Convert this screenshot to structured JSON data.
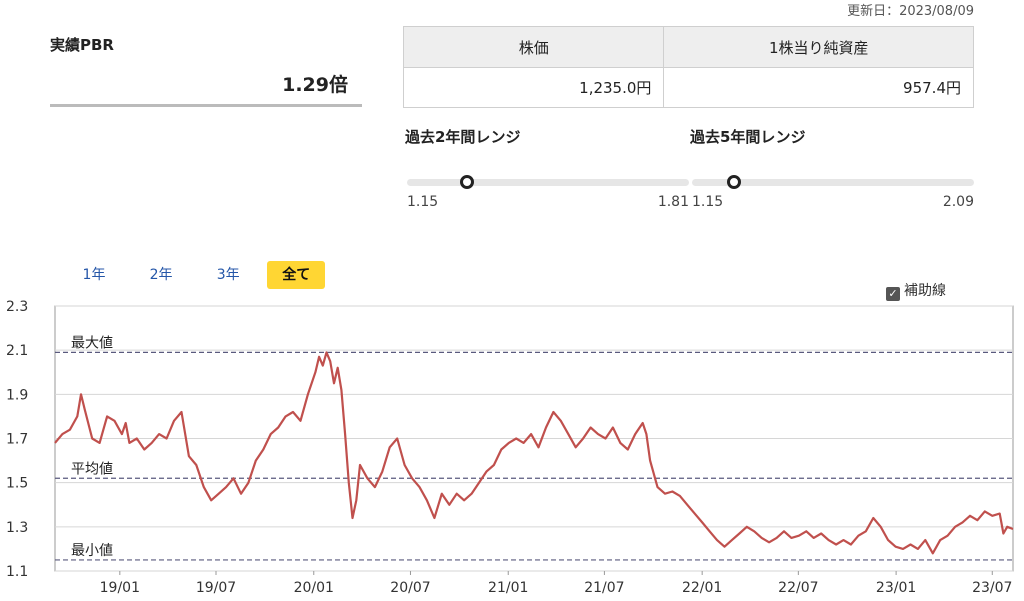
{
  "updated": "更新日：2023/08/09",
  "pbr": {
    "label": "実績PBR",
    "value": "1.29倍"
  },
  "table": {
    "headers": [
      "株価",
      "1株当り純資産"
    ],
    "values": [
      "1,235.0円",
      "957.4円"
    ]
  },
  "ranges": [
    {
      "title": "過去2年間レンジ",
      "min": "1.15",
      "max": "1.81",
      "current": 1.29,
      "lo": 1.15,
      "hi": 1.81
    },
    {
      "title": "過去5年間レンジ",
      "min": "1.15",
      "max": "2.09",
      "current": 1.29,
      "lo": 1.15,
      "hi": 2.09
    }
  ],
  "tabs": [
    {
      "label": "1年",
      "active": false
    },
    {
      "label": "2年",
      "active": false
    },
    {
      "label": "3年",
      "active": false
    },
    {
      "label": "全て",
      "active": true
    }
  ],
  "aux_label": "補助線",
  "colors": {
    "line": "#c0504d",
    "ref": "#5a5a7e",
    "tab_active": "#ffd633"
  },
  "chart_data": {
    "type": "line",
    "ylim": [
      1.1,
      2.3
    ],
    "yticks": [
      1.1,
      1.3,
      1.5,
      1.7,
      1.9,
      2.1,
      2.3
    ],
    "xlim": [
      "2018-09-01",
      "2023-08-09"
    ],
    "xticks": [
      {
        "date": "2019-01-01",
        "label": "19/01"
      },
      {
        "date": "2019-07-01",
        "label": "19/07"
      },
      {
        "date": "2020-01-01",
        "label": "20/01"
      },
      {
        "date": "2020-07-01",
        "label": "20/07"
      },
      {
        "date": "2021-01-01",
        "label": "21/01"
      },
      {
        "date": "2021-07-01",
        "label": "21/07"
      },
      {
        "date": "2022-01-01",
        "label": "22/01"
      },
      {
        "date": "2022-07-01",
        "label": "22/07"
      },
      {
        "date": "2023-01-01",
        "label": "23/01"
      },
      {
        "date": "2023-07-01",
        "label": "23/07"
      }
    ],
    "reference_lines": [
      {
        "label": "最大値",
        "value": 2.09
      },
      {
        "label": "平均値",
        "value": 1.52
      },
      {
        "label": "最小値",
        "value": 1.15
      }
    ],
    "series": [
      {
        "points": [
          [
            "2018-09-01",
            1.68
          ],
          [
            "2018-09-15",
            1.72
          ],
          [
            "2018-09-29",
            1.74
          ],
          [
            "2018-10-13",
            1.8
          ],
          [
            "2018-10-20",
            1.9
          ],
          [
            "2018-10-27",
            1.83
          ],
          [
            "2018-11-10",
            1.7
          ],
          [
            "2018-11-24",
            1.68
          ],
          [
            "2018-12-08",
            1.8
          ],
          [
            "2018-12-22",
            1.78
          ],
          [
            "2019-01-05",
            1.72
          ],
          [
            "2019-01-12",
            1.77
          ],
          [
            "2019-01-19",
            1.68
          ],
          [
            "2019-02-02",
            1.7
          ],
          [
            "2019-02-16",
            1.65
          ],
          [
            "2019-03-02",
            1.68
          ],
          [
            "2019-03-16",
            1.72
          ],
          [
            "2019-03-30",
            1.7
          ],
          [
            "2019-04-13",
            1.78
          ],
          [
            "2019-04-27",
            1.82
          ],
          [
            "2019-05-11",
            1.62
          ],
          [
            "2019-05-25",
            1.58
          ],
          [
            "2019-06-08",
            1.48
          ],
          [
            "2019-06-22",
            1.42
          ],
          [
            "2019-07-06",
            1.45
          ],
          [
            "2019-07-20",
            1.48
          ],
          [
            "2019-08-03",
            1.52
          ],
          [
            "2019-08-17",
            1.45
          ],
          [
            "2019-08-31",
            1.5
          ],
          [
            "2019-09-14",
            1.6
          ],
          [
            "2019-09-28",
            1.65
          ],
          [
            "2019-10-12",
            1.72
          ],
          [
            "2019-10-26",
            1.75
          ],
          [
            "2019-11-09",
            1.8
          ],
          [
            "2019-11-23",
            1.82
          ],
          [
            "2019-12-07",
            1.78
          ],
          [
            "2019-12-21",
            1.9
          ],
          [
            "2020-01-04",
            2.0
          ],
          [
            "2020-01-11",
            2.07
          ],
          [
            "2020-01-18",
            2.03
          ],
          [
            "2020-01-25",
            2.09
          ],
          [
            "2020-02-01",
            2.05
          ],
          [
            "2020-02-08",
            1.95
          ],
          [
            "2020-02-15",
            2.02
          ],
          [
            "2020-02-22",
            1.92
          ],
          [
            "2020-02-29",
            1.72
          ],
          [
            "2020-03-07",
            1.5
          ],
          [
            "2020-03-14",
            1.34
          ],
          [
            "2020-03-21",
            1.42
          ],
          [
            "2020-03-28",
            1.58
          ],
          [
            "2020-04-11",
            1.52
          ],
          [
            "2020-04-25",
            1.48
          ],
          [
            "2020-05-09",
            1.55
          ],
          [
            "2020-05-23",
            1.66
          ],
          [
            "2020-06-06",
            1.7
          ],
          [
            "2020-06-20",
            1.58
          ],
          [
            "2020-07-04",
            1.52
          ],
          [
            "2020-07-18",
            1.48
          ],
          [
            "2020-08-01",
            1.42
          ],
          [
            "2020-08-15",
            1.34
          ],
          [
            "2020-08-29",
            1.45
          ],
          [
            "2020-09-12",
            1.4
          ],
          [
            "2020-09-26",
            1.45
          ],
          [
            "2020-10-10",
            1.42
          ],
          [
            "2020-10-24",
            1.45
          ],
          [
            "2020-11-07",
            1.5
          ],
          [
            "2020-11-21",
            1.55
          ],
          [
            "2020-12-05",
            1.58
          ],
          [
            "2020-12-19",
            1.65
          ],
          [
            "2021-01-02",
            1.68
          ],
          [
            "2021-01-16",
            1.7
          ],
          [
            "2021-01-30",
            1.68
          ],
          [
            "2021-02-13",
            1.72
          ],
          [
            "2021-02-27",
            1.66
          ],
          [
            "2021-03-13",
            1.75
          ],
          [
            "2021-03-27",
            1.82
          ],
          [
            "2021-04-10",
            1.78
          ],
          [
            "2021-04-24",
            1.72
          ],
          [
            "2021-05-08",
            1.66
          ],
          [
            "2021-05-22",
            1.7
          ],
          [
            "2021-06-05",
            1.75
          ],
          [
            "2021-06-19",
            1.72
          ],
          [
            "2021-07-03",
            1.7
          ],
          [
            "2021-07-17",
            1.75
          ],
          [
            "2021-07-31",
            1.68
          ],
          [
            "2021-08-14",
            1.65
          ],
          [
            "2021-08-28",
            1.72
          ],
          [
            "2021-09-11",
            1.77
          ],
          [
            "2021-09-18",
            1.72
          ],
          [
            "2021-09-25",
            1.6
          ],
          [
            "2021-10-09",
            1.48
          ],
          [
            "2021-10-23",
            1.45
          ],
          [
            "2021-11-06",
            1.46
          ],
          [
            "2021-11-20",
            1.44
          ],
          [
            "2021-12-04",
            1.4
          ],
          [
            "2021-12-18",
            1.36
          ],
          [
            "2022-01-01",
            1.32
          ],
          [
            "2022-01-15",
            1.28
          ],
          [
            "2022-01-29",
            1.24
          ],
          [
            "2022-02-12",
            1.21
          ],
          [
            "2022-02-26",
            1.24
          ],
          [
            "2022-03-12",
            1.27
          ],
          [
            "2022-03-26",
            1.3
          ],
          [
            "2022-04-09",
            1.28
          ],
          [
            "2022-04-23",
            1.25
          ],
          [
            "2022-05-07",
            1.23
          ],
          [
            "2022-05-21",
            1.25
          ],
          [
            "2022-06-04",
            1.28
          ],
          [
            "2022-06-18",
            1.25
          ],
          [
            "2022-07-02",
            1.26
          ],
          [
            "2022-07-16",
            1.28
          ],
          [
            "2022-07-30",
            1.25
          ],
          [
            "2022-08-13",
            1.27
          ],
          [
            "2022-08-27",
            1.24
          ],
          [
            "2022-09-10",
            1.22
          ],
          [
            "2022-09-24",
            1.24
          ],
          [
            "2022-10-08",
            1.22
          ],
          [
            "2022-10-22",
            1.26
          ],
          [
            "2022-11-05",
            1.28
          ],
          [
            "2022-11-19",
            1.34
          ],
          [
            "2022-12-03",
            1.3
          ],
          [
            "2022-12-17",
            1.24
          ],
          [
            "2022-12-31",
            1.21
          ],
          [
            "2023-01-14",
            1.2
          ],
          [
            "2023-01-28",
            1.22
          ],
          [
            "2023-02-11",
            1.2
          ],
          [
            "2023-02-25",
            1.24
          ],
          [
            "2023-03-11",
            1.18
          ],
          [
            "2023-03-25",
            1.24
          ],
          [
            "2023-04-08",
            1.26
          ],
          [
            "2023-04-22",
            1.3
          ],
          [
            "2023-05-06",
            1.32
          ],
          [
            "2023-05-20",
            1.35
          ],
          [
            "2023-06-03",
            1.33
          ],
          [
            "2023-06-17",
            1.37
          ],
          [
            "2023-07-01",
            1.35
          ],
          [
            "2023-07-15",
            1.36
          ],
          [
            "2023-07-22",
            1.27
          ],
          [
            "2023-07-29",
            1.3
          ],
          [
            "2023-08-09",
            1.29
          ]
        ]
      }
    ]
  }
}
